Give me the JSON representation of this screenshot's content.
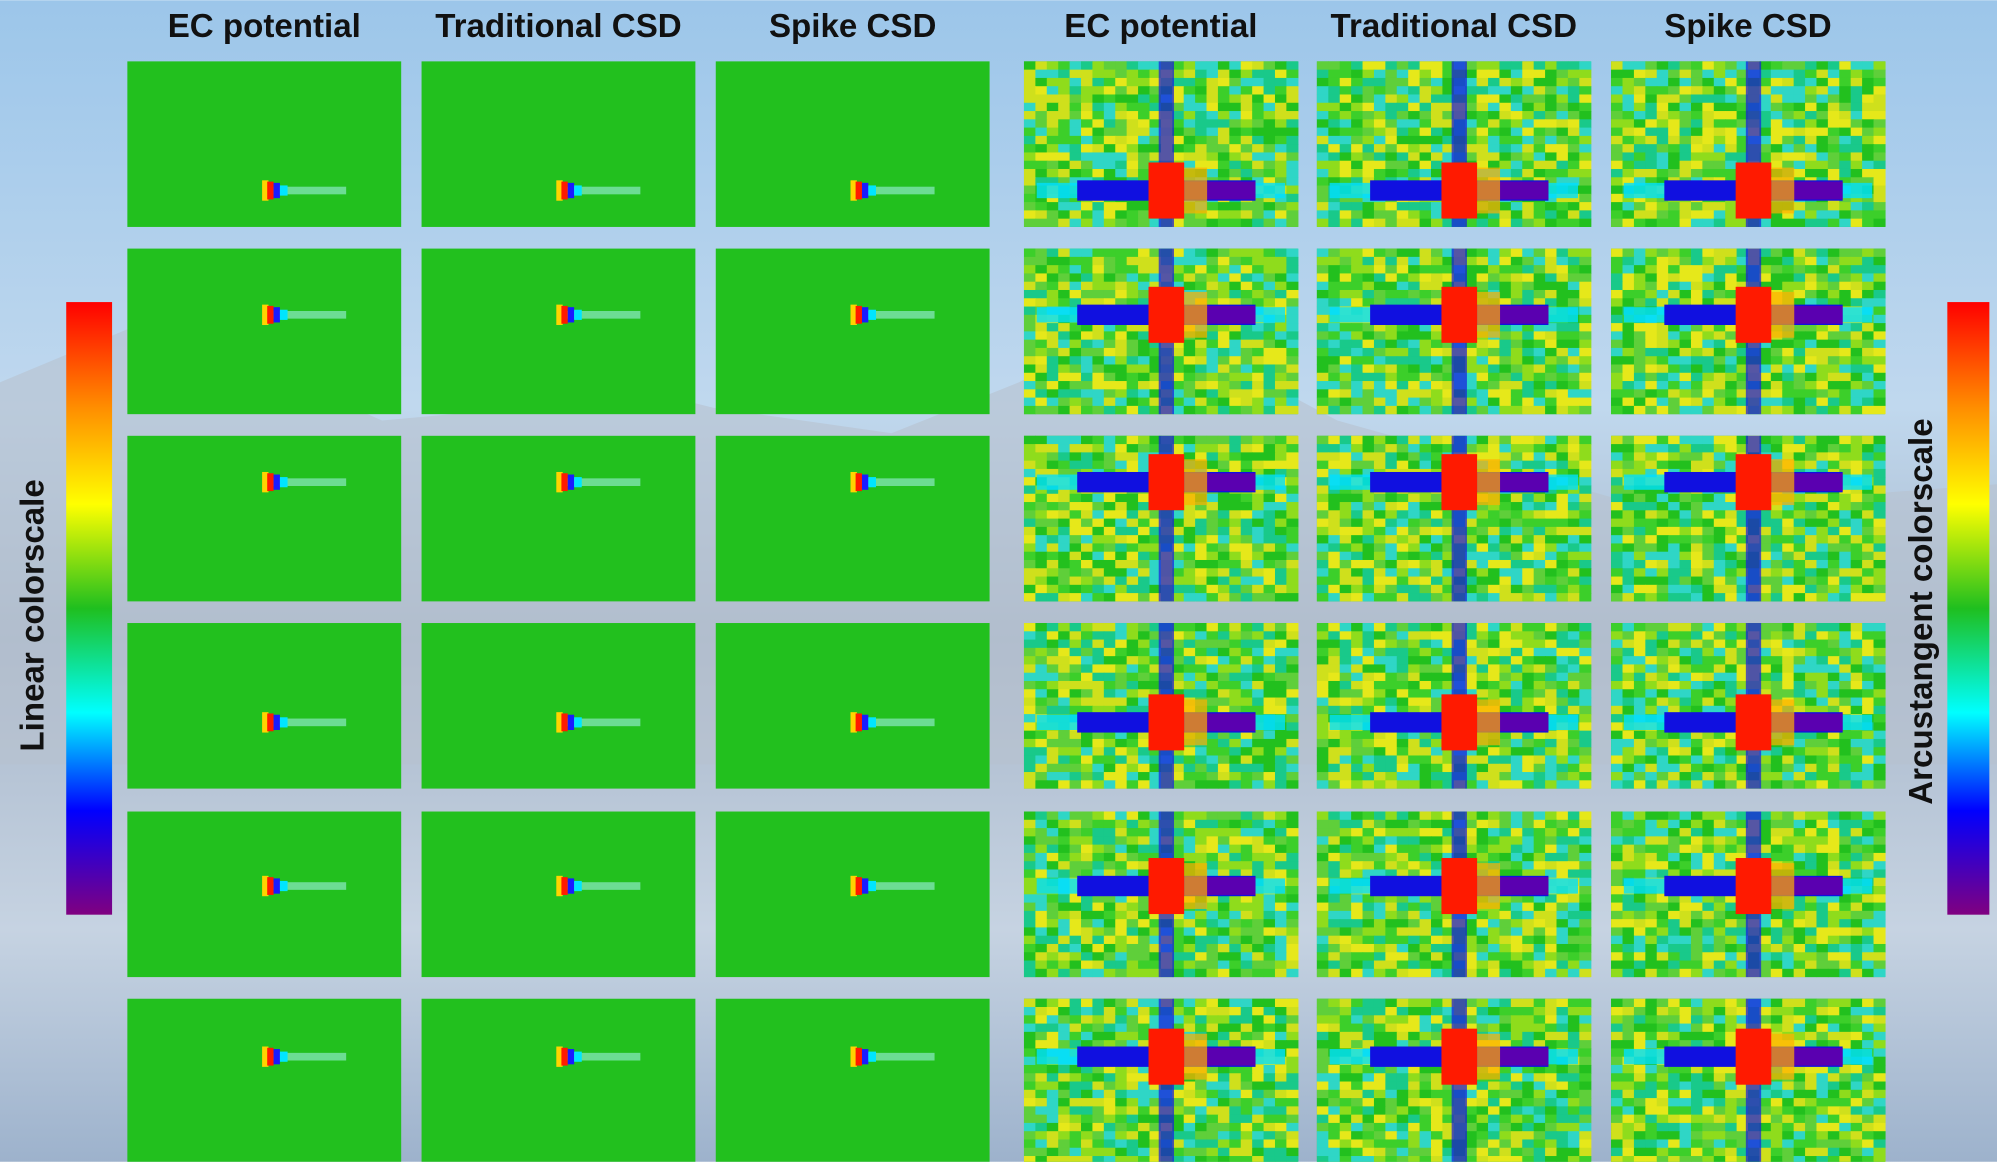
{
  "headers": [
    "EC potential",
    "Traditional CSD",
    "Spike CSD",
    "EC potential",
    "Traditional CSD",
    "Spike CSD"
  ],
  "colorbars": {
    "left": "Linear colorscale",
    "right": "Arcustangent colorscale"
  }
}
